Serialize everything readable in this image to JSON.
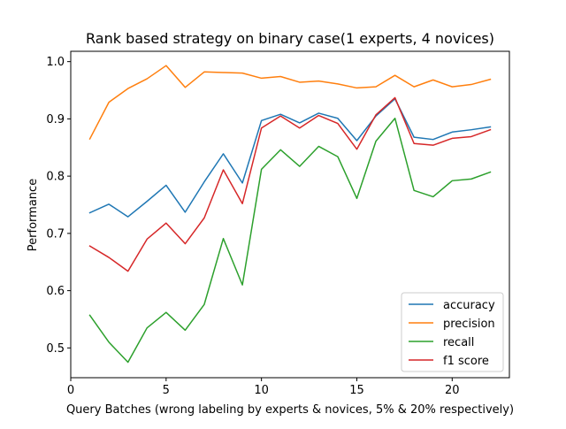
{
  "chart_data": {
    "type": "line",
    "title": "Rank based strategy on binary case(1 experts, 4 novices)",
    "xlabel": "Query Batches (wrong labeling by experts & novices, 5% & 20% respectively)",
    "ylabel": "Performance",
    "xlim": [
      0,
      23
    ],
    "ylim": [
      0.448,
      1.018
    ],
    "xticks": [
      0,
      5,
      10,
      15,
      20
    ],
    "yticks": [
      0.5,
      0.6,
      0.7,
      0.8,
      0.9,
      1.0
    ],
    "ytick_labels": [
      "0.5",
      "0.6",
      "0.7",
      "0.8",
      "0.9",
      "1.0"
    ],
    "grid": false,
    "legend_position": "lower-right",
    "x": [
      1,
      2,
      3,
      4,
      5,
      6,
      7,
      8,
      9,
      10,
      11,
      12,
      13,
      14,
      15,
      16,
      17,
      18,
      19,
      20,
      21,
      22
    ],
    "series": [
      {
        "name": "accuracy",
        "color": "#1f77b4",
        "values": [
          0.736,
          0.751,
          0.729,
          0.756,
          0.784,
          0.737,
          0.79,
          0.839,
          0.788,
          0.897,
          0.908,
          0.893,
          0.91,
          0.901,
          0.862,
          0.905,
          0.935,
          0.868,
          0.864,
          0.877,
          0.881,
          0.886
        ]
      },
      {
        "name": "precision",
        "color": "#ff7f0e",
        "values": [
          0.865,
          0.929,
          0.953,
          0.97,
          0.993,
          0.955,
          0.982,
          0.981,
          0.98,
          0.971,
          0.974,
          0.964,
          0.966,
          0.961,
          0.954,
          0.956,
          0.976,
          0.956,
          0.968,
          0.956,
          0.96,
          0.969
        ]
      },
      {
        "name": "recall",
        "color": "#2ca02c",
        "values": [
          0.557,
          0.51,
          0.475,
          0.535,
          0.562,
          0.531,
          0.576,
          0.691,
          0.61,
          0.812,
          0.846,
          0.817,
          0.852,
          0.834,
          0.761,
          0.861,
          0.901,
          0.775,
          0.764,
          0.792,
          0.795,
          0.807
        ]
      },
      {
        "name": "f1 score",
        "color": "#d62728",
        "values": [
          0.678,
          0.658,
          0.634,
          0.69,
          0.718,
          0.682,
          0.727,
          0.811,
          0.752,
          0.884,
          0.905,
          0.884,
          0.906,
          0.892,
          0.847,
          0.907,
          0.937,
          0.857,
          0.854,
          0.866,
          0.869,
          0.881
        ]
      }
    ]
  }
}
